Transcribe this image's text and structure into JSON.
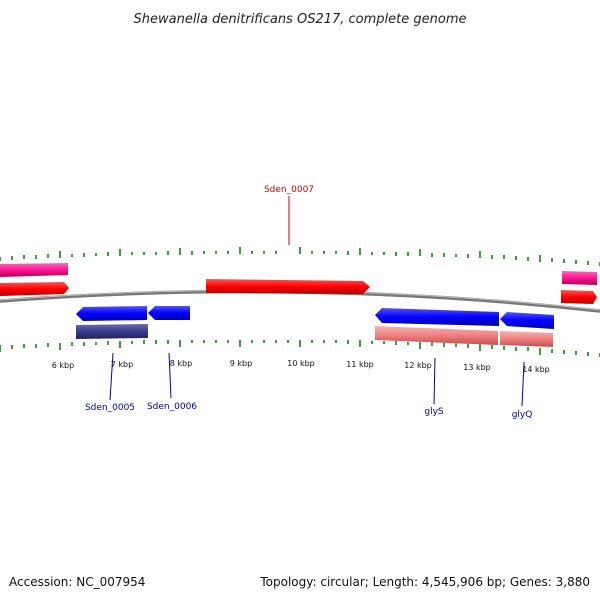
{
  "title": "Shewanella denitrificans OS217, complete genome",
  "footer": {
    "accession": "Accession: NC_007954",
    "summary": "Topology: circular; Length: 4,545,906 bp; Genes: 3,880"
  },
  "tick_labels": [
    "6 kbp",
    "7 kbp",
    "8 kbp",
    "9 kbp",
    "10 kbp",
    "11 kbp",
    "12 kbp",
    "13 kbp",
    "14 kbp"
  ],
  "gene_labels": {
    "sden_0007": "Sden_0007",
    "sden_0005": "Sden_0005",
    "sden_0006": "Sden_0006",
    "glys": "glyS",
    "glyq": "glyQ"
  },
  "colors": {
    "forward_cds": "#ff0000",
    "forward_gene": "#ff1493",
    "reverse_cds": "#0000ff",
    "reverse_gene_dark": "#3a3a8c",
    "reverse_gene_light": "#f08080",
    "backbone": "#808080",
    "tick": "#007a00",
    "label_red": "#cc0000",
    "label_blue": "#0000aa"
  }
}
